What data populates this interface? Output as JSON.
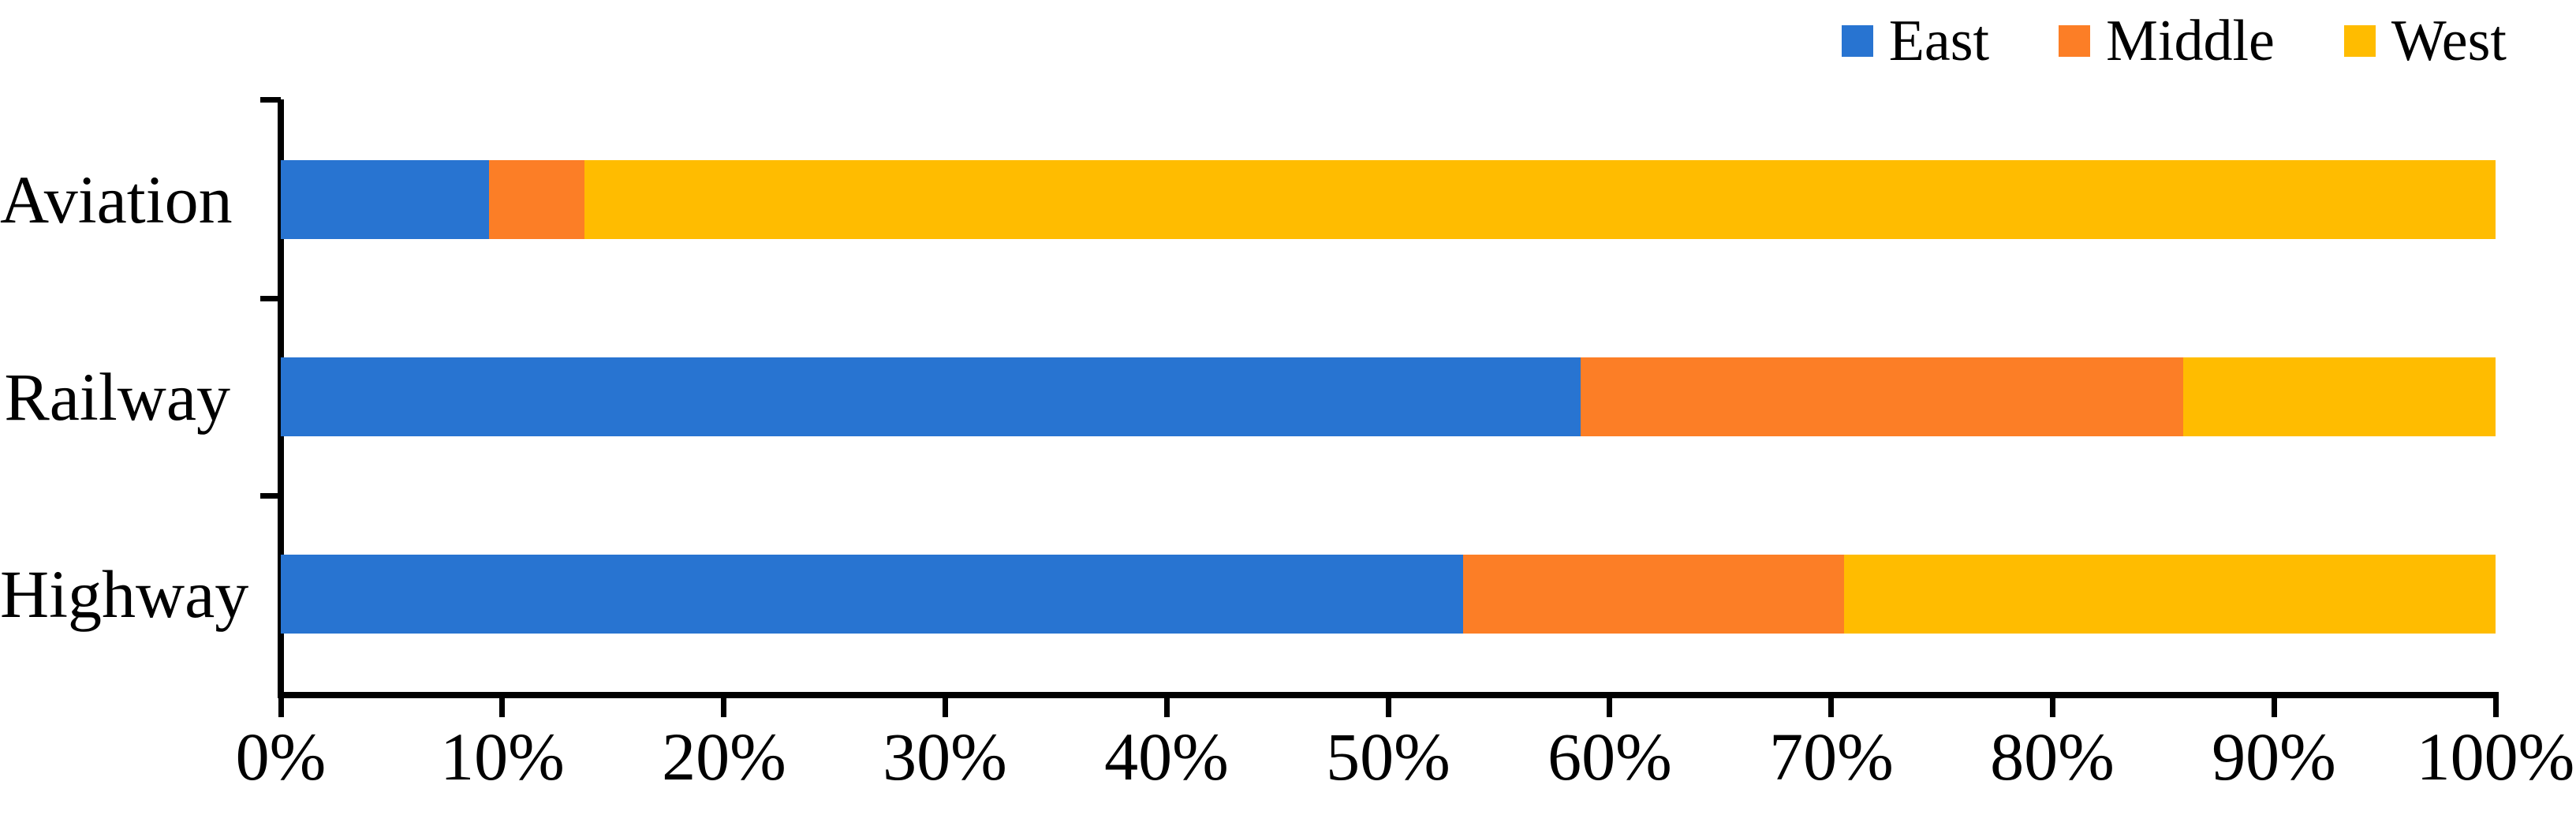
{
  "chart_data": {
    "type": "bar",
    "orientation": "horizontal",
    "stacked": true,
    "units": "%",
    "title": "",
    "xlabel": "",
    "ylabel": "",
    "grid": false,
    "categories": [
      "Aviation",
      "Railway",
      "Highway"
    ],
    "series": [
      {
        "name": "East",
        "color": "#2874D1",
        "values": [
          9.4,
          58.7,
          53.4
        ]
      },
      {
        "name": "Middle",
        "color": "#FC7E26",
        "values": [
          4.3,
          27.2,
          17.2
        ]
      },
      {
        "name": "West",
        "color": "#FFBC00",
        "values": [
          86.3,
          14.1,
          29.4
        ]
      }
    ],
    "x_axis": {
      "min": 0,
      "max": 100,
      "tick_step": 10,
      "tick_labels": [
        "0%",
        "10%",
        "20%",
        "30%",
        "40%",
        "50%",
        "60%",
        "70%",
        "80%",
        "90%",
        "100%"
      ]
    },
    "legend": {
      "position": "top-right",
      "entries": [
        "East",
        "Middle",
        "West"
      ]
    }
  },
  "colors": {
    "axis": "#000000",
    "text": "#000000",
    "background": "#FFFFFF"
  }
}
